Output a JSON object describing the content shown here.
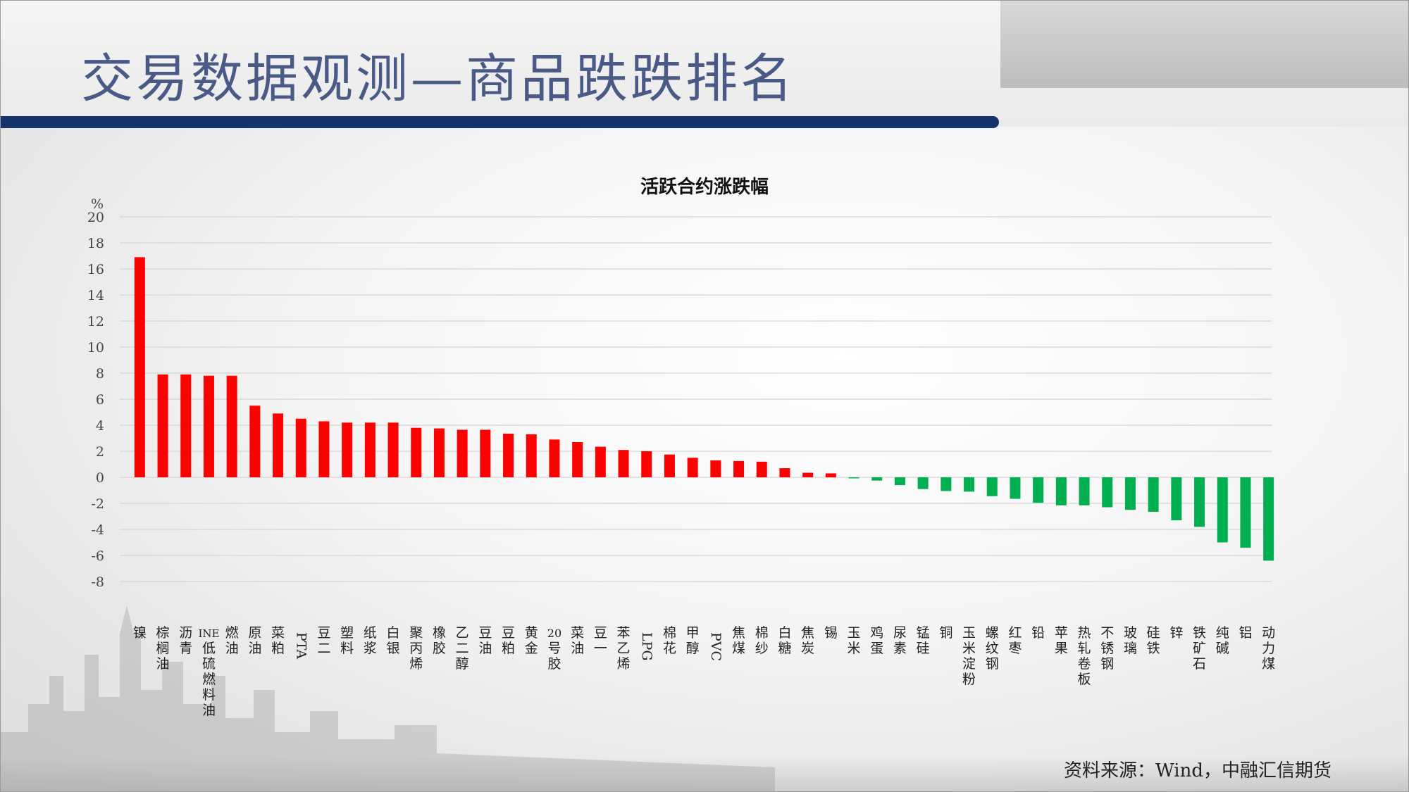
{
  "page": {
    "title": "交易数据观测—商品跌跌排名",
    "source": "资料来源：Wind，中融汇信期货"
  },
  "colors": {
    "up": "#ff0000",
    "down": "#00b050",
    "title": "#4a5a86",
    "bar_band": "#14336b"
  },
  "chart_data": {
    "type": "bar",
    "title": "活跃合约涨跌幅",
    "ylabel": "%",
    "ylim": [
      -8,
      20
    ],
    "yticks": [
      20,
      18,
      16,
      14,
      12,
      10,
      8,
      6,
      4,
      2,
      0,
      -2,
      -4,
      -6,
      -8
    ],
    "grid": true,
    "categories": [
      "镍",
      "棕榈油",
      "沥青",
      "INE低硫燃料油",
      "燃油",
      "原油",
      "菜粕",
      "PTA",
      "豆二",
      "塑料",
      "纸浆",
      "白银",
      "聚丙烯",
      "橡胶",
      "乙二醇",
      "豆油",
      "豆粕",
      "黄金",
      "20号胶",
      "菜油",
      "豆一",
      "苯乙烯",
      "LPG",
      "棉花",
      "甲醇",
      "PVC",
      "焦煤",
      "棉纱",
      "白糖",
      "焦炭",
      "锡",
      "玉米",
      "鸡蛋",
      "尿素",
      "锰硅",
      "铜",
      "玉米淀粉",
      "螺纹钢",
      "红枣",
      "铅",
      "苹果",
      "热轧卷板",
      "不锈钢",
      "玻璃",
      "硅铁",
      "锌",
      "铁矿石",
      "纯碱",
      "铝",
      "动力煤"
    ],
    "values": [
      16.9,
      7.9,
      7.9,
      7.8,
      7.8,
      5.5,
      4.9,
      4.5,
      4.3,
      4.2,
      4.2,
      4.2,
      3.8,
      3.75,
      3.65,
      3.65,
      3.35,
      3.3,
      2.9,
      2.7,
      2.35,
      2.1,
      2.0,
      1.75,
      1.5,
      1.3,
      1.25,
      1.2,
      0.7,
      0.35,
      0.3,
      -0.05,
      -0.25,
      -0.6,
      -0.9,
      -1.05,
      -1.1,
      -1.45,
      -1.65,
      -1.95,
      -2.15,
      -2.15,
      -2.3,
      -2.5,
      -2.65,
      -3.3,
      -3.8,
      -5.0,
      -5.4,
      -6.4
    ]
  }
}
